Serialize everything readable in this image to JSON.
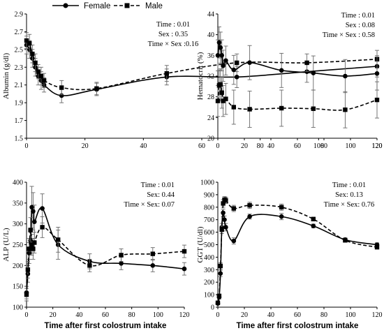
{
  "legend": {
    "female": "Female",
    "male": "Male"
  },
  "chart_data": [
    {
      "id": "albumin",
      "type": "line",
      "ylabel": "Albumin (g/dl)",
      "xlabel": "",
      "xlim": [
        0,
        120
      ],
      "ylim": [
        1.5,
        2.9
      ],
      "xticks": [
        0,
        20,
        40,
        60,
        80,
        100,
        120
      ],
      "yticks": [
        1.5,
        1.7,
        1.9,
        2.1,
        2.3,
        2.5,
        2.7,
        2.9
      ],
      "tick_decimals": 1,
      "stats": [
        "Time : 0.01",
        "Sex : 0.35",
        "Time × Sex :0.16"
      ],
      "series": [
        {
          "name": "Female",
          "x": [
            0,
            1,
            2,
            3,
            4,
            5,
            6,
            12,
            24,
            48,
            72,
            96,
            120
          ],
          "y": [
            2.55,
            2.5,
            2.4,
            2.3,
            2.2,
            2.15,
            2.1,
            1.98,
            2.05,
            2.19,
            2.19,
            2.25,
            2.31
          ],
          "err": [
            0.1,
            0.1,
            0.1,
            0.1,
            0.1,
            0.1,
            0.08,
            0.08,
            0.07,
            0.09,
            0.12,
            0.12,
            0.12
          ]
        },
        {
          "name": "Male",
          "x": [
            0,
            1,
            2,
            3,
            4,
            5,
            6,
            12,
            24,
            48,
            72,
            96,
            120
          ],
          "y": [
            2.6,
            2.57,
            2.45,
            2.35,
            2.25,
            2.2,
            2.15,
            2.07,
            2.06,
            2.23,
            2.35,
            2.35,
            2.39
          ],
          "err": [
            0.09,
            0.1,
            0.1,
            0.1,
            0.08,
            0.1,
            0.08,
            0.08,
            0.07,
            0.09,
            0.1,
            0.1,
            0.1
          ]
        }
      ]
    },
    {
      "id": "hematocrit",
      "type": "line",
      "ylabel": "Hematocrit (%)",
      "xlabel": "",
      "xlim": [
        0,
        120
      ],
      "ylim": [
        20,
        44
      ],
      "xticks": [
        0,
        20,
        40,
        60,
        80,
        100,
        120
      ],
      "yticks": [
        20,
        24,
        28,
        32,
        36,
        40,
        44
      ],
      "tick_decimals": 0,
      "stats": [
        "Time :  0.01",
        "Sex : 0.08",
        "Time × Sex :  0.58"
      ],
      "series": [
        {
          "name": "Female",
          "x": [
            0,
            1,
            2,
            3,
            4,
            6,
            12,
            24,
            48,
            72,
            96,
            120
          ],
          "y": [
            36,
            38.5,
            37.5,
            36,
            34,
            35,
            33.2,
            34.6,
            33.1,
            32.6,
            32,
            32.5
          ],
          "err": [
            3,
            3,
            3,
            3,
            3,
            2.8,
            2.8,
            3.3,
            3.3,
            3.3,
            3.2,
            3.2
          ]
        },
        {
          "name": "Male",
          "x": [
            0,
            1,
            2,
            3,
            4,
            6,
            12,
            24,
            48,
            72,
            96,
            120
          ],
          "y": [
            27.2,
            30.2,
            30.4,
            28.8,
            27.2,
            27.6,
            26,
            25.6,
            25.8,
            25.7,
            25.5,
            27.4
          ],
          "err": [
            3,
            3,
            3,
            3,
            3,
            3,
            3.3,
            3.5,
            3.5,
            3.6,
            3.5,
            3.5
          ]
        }
      ]
    },
    {
      "id": "alp",
      "type": "line",
      "ylabel": "ALP (U/L)",
      "xlabel": "Time after first colostrum intake",
      "xlim": [
        0,
        120
      ],
      "ylim": [
        100,
        400
      ],
      "xticks": [
        0,
        20,
        40,
        60,
        80,
        100,
        120
      ],
      "yticks": [
        100,
        150,
        200,
        250,
        300,
        350,
        400
      ],
      "tick_decimals": 0,
      "stats": [
        "Time : 0.01",
        "Sex: 0.44",
        "Time × Sex: 0.07"
      ],
      "series": [
        {
          "name": "Female",
          "x": [
            0,
            1,
            2,
            3,
            4,
            5,
            6,
            12,
            24,
            48,
            72,
            96,
            120
          ],
          "y": [
            135,
            180,
            230,
            260,
            340,
            330,
            305,
            337,
            250,
            210,
            205,
            200,
            192
          ],
          "err": [
            15,
            20,
            25,
            30,
            50,
            45,
            40,
            35,
            35,
            18,
            15,
            15,
            15
          ]
        },
        {
          "name": "Male",
          "x": [
            0,
            1,
            2,
            3,
            4,
            5,
            6,
            12,
            24,
            48,
            72,
            96,
            120
          ],
          "y": [
            130,
            190,
            240,
            285,
            250,
            240,
            255,
            292,
            262,
            200,
            225,
            228,
            234
          ],
          "err": [
            15,
            20,
            25,
            30,
            25,
            25,
            25,
            25,
            30,
            15,
            15,
            15,
            15
          ]
        }
      ]
    },
    {
      "id": "ggt",
      "type": "line",
      "ylabel": "GGT (U/dl)",
      "xlabel": "Time after first colostrum intake",
      "xlim": [
        0,
        120
      ],
      "ylim": [
        0,
        1000
      ],
      "xticks": [
        0,
        20,
        40,
        60,
        80,
        100,
        120
      ],
      "yticks": [
        0,
        100,
        200,
        300,
        400,
        500,
        600,
        700,
        800,
        900,
        1000
      ],
      "tick_decimals": 0,
      "stats": [
        "Time : 0.01",
        "Sex: 0.13",
        "Time × Sex: 0.76"
      ],
      "series": [
        {
          "name": "Female",
          "x": [
            0,
            1,
            2,
            3,
            4,
            5,
            6,
            12,
            24,
            48,
            72,
            96,
            120
          ],
          "y": [
            30,
            80,
            270,
            640,
            755,
            700,
            640,
            530,
            725,
            725,
            650,
            540,
            500
          ],
          "err": [
            10,
            15,
            25,
            30,
            30,
            30,
            30,
            25,
            20,
            25,
            15,
            15,
            15
          ]
        },
        {
          "name": "Male",
          "x": [
            0,
            1,
            2,
            3,
            4,
            5,
            6,
            12,
            24,
            48,
            72,
            96,
            120
          ],
          "y": [
            35,
            90,
            330,
            620,
            830,
            860,
            855,
            790,
            815,
            800,
            705,
            535,
            480
          ],
          "err": [
            10,
            15,
            25,
            30,
            30,
            25,
            25,
            25,
            25,
            25,
            15,
            15,
            15
          ]
        }
      ]
    }
  ]
}
